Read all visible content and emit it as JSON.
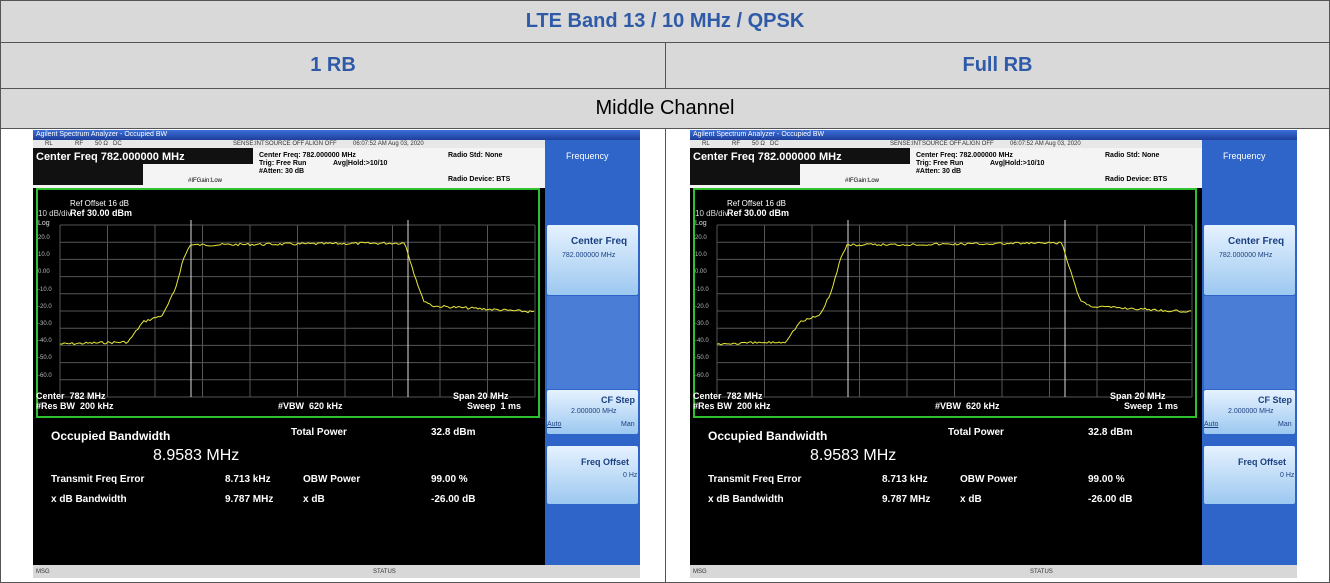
{
  "table": {
    "title": "LTE Band 13 / 10 MHz / QPSK",
    "columns": [
      "1 RB",
      "Full RB"
    ],
    "channel": "Middle Channel",
    "screens": [
      {
        "window_title": "Agilent Spectrum Analyzer - Occupied BW",
        "status_items": [
          "RL",
          "RF",
          "50 Ω",
          "DC",
          "SENSE:INT",
          "SOURCE OFF",
          "ALIGN OFF",
          "06:07:52 AM Aug 03, 2020"
        ],
        "center_freq": "Center Freq 782.000000 MHz",
        "settings": [
          "Center Freq: 782.000000 MHz",
          "Trig: Free Run",
          "#Atten: 30 dB"
        ],
        "avg": "Avg|Hold:>10/10",
        "if_gain": "#IFGain:Low",
        "radio_std": "Radio Std: None",
        "radio_device": "Radio Device: BTS",
        "graph": {
          "ref_offset": "Ref Offset 16 dB",
          "scale": "10 dB/div",
          "ref_level": "Ref 30.00 dBm",
          "scale_type": "Log",
          "y_labels": [
            "20.0",
            "10.0",
            "0.00",
            "-10.0",
            "-20.0",
            "-30.0",
            "-40.0",
            "-50.0",
            "-60.0"
          ],
          "center": "Center  782 MHz",
          "res_bw": "#Res BW  200 kHz",
          "vbw": "#VBW  620 kHz",
          "span": "Span 20 MHz",
          "sweep": "Sweep  1 ms"
        },
        "results": {
          "obw_label": "Occupied Bandwidth",
          "obw_value": "8.9583 MHz",
          "total_power_label": "Total Power",
          "total_power": "32.8 dBm",
          "tfe_label": "Transmit Freq Error",
          "tfe": "8.713 kHz",
          "obw_power_label": "OBW Power",
          "obw_power": "99.00 %",
          "xdb_bw_label": "x dB Bandwidth",
          "xdb_bw": "9.787 MHz",
          "xdb_label": "x dB",
          "xdb": "-26.00 dB"
        },
        "softkeys": {
          "title": "Frequency",
          "center_freq": "Center Freq",
          "center_freq_value": "782.000000 MHz",
          "cf_step": "CF Step",
          "cf_step_value": "2.000000 MHz",
          "auto": "Auto",
          "man": "Man",
          "freq_offset": "Freq Offset",
          "freq_offset_value": "0 Hz"
        },
        "msg": "MSG",
        "status": "STATUS"
      },
      {
        "window_title": "Agilent Spectrum Analyzer - Occupied BW",
        "status_items": [
          "RL",
          "RF",
          "50 Ω",
          "DC",
          "SENSE:INT",
          "SOURCE OFF",
          "ALIGN OFF",
          "06:07:52 AM Aug 03, 2020"
        ],
        "center_freq": "Center Freq 782.000000 MHz",
        "settings": [
          "Center Freq: 782.000000 MHz",
          "Trig: Free Run",
          "#Atten: 30 dB"
        ],
        "avg": "Avg|Hold:>10/10",
        "if_gain": "#IFGain:Low",
        "radio_std": "Radio Std: None",
        "radio_device": "Radio Device: BTS",
        "graph": {
          "ref_offset": "Ref Offset 16 dB",
          "scale": "10 dB/div",
          "ref_level": "Ref 30.00 dBm",
          "scale_type": "Log",
          "y_labels": [
            "20.0",
            "10.0",
            "0.00",
            "-10.0",
            "-20.0",
            "-30.0",
            "-40.0",
            "-50.0",
            "-60.0"
          ],
          "center": "Center  782 MHz",
          "res_bw": "#Res BW  200 kHz",
          "vbw": "#VBW  620 kHz",
          "span": "Span 20 MHz",
          "sweep": "Sweep  1 ms"
        },
        "results": {
          "obw_label": "Occupied Bandwidth",
          "obw_value": "8.9583 MHz",
          "total_power_label": "Total Power",
          "total_power": "32.8 dBm",
          "tfe_label": "Transmit Freq Error",
          "tfe": "8.713 kHz",
          "obw_power_label": "OBW Power",
          "obw_power": "99.00 %",
          "xdb_bw_label": "x dB Bandwidth",
          "xdb_bw": "9.787 MHz",
          "xdb_label": "x dB",
          "xdb": "-26.00 dB"
        },
        "softkeys": {
          "title": "Frequency",
          "center_freq": "Center Freq",
          "center_freq_value": "782.000000 MHz",
          "cf_step": "CF Step",
          "cf_step_value": "2.000000 MHz",
          "auto": "Auto",
          "man": "Man",
          "freq_offset": "Freq Offset",
          "freq_offset_value": "0 Hz"
        },
        "msg": "MSG",
        "status": "STATUS"
      }
    ]
  }
}
